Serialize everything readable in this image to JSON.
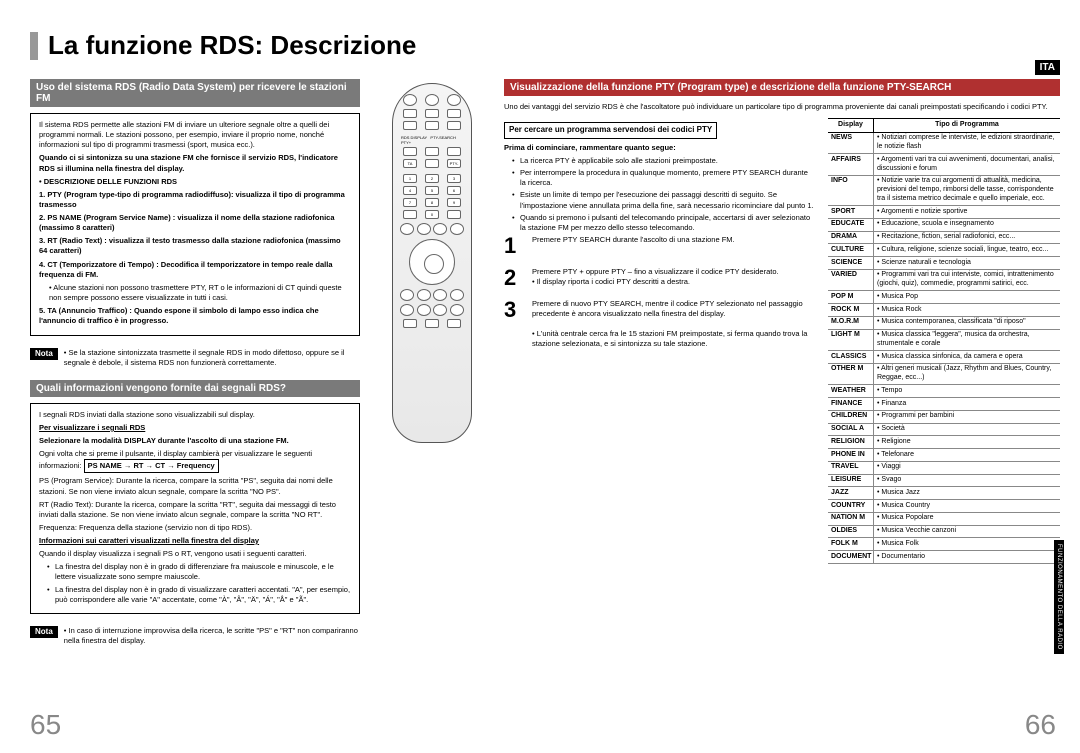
{
  "lang_badge": "ITA",
  "side_tab": "FUNZIONAMENTO DELLA RADIO",
  "title": "La funzione RDS: Descrizione",
  "page_left": "65",
  "page_right": "66",
  "left": {
    "hdr1": "Uso del sistema RDS (Radio Data System) per ricevere le stazioni FM",
    "box1": {
      "intro": "Il sistema RDS permette alle stazioni FM di inviare un ulteriore segnale oltre a quelli dei programmi normali. Le stazioni possono, per esempio, inviare il proprio nome, nonché informazioni sul tipo di programmi trasmessi (sport, musica ecc.).",
      "bold1": "Quando ci si sintonizza su una stazione FM che fornisce il servizio RDS, l'indicatore RDS si illumina nella finestra del display.",
      "desc_hdr": "• DESCRIZIONE DELLE FUNZIONI RDS",
      "i1": "1. PTY (Program type-tipo di programma radiodiffuso): visualizza il tipo di programma trasmesso",
      "i2": "2. PS NAME (Program Service Name) : visualizza il nome della stazione radiofonica (massimo 8 caratteri)",
      "i3": "3. RT (Radio Text) : visualizza il testo trasmesso dalla stazione radiofonica (massimo 64 caratteri)",
      "i4": "4. CT (Temporizzatore di Tempo) : Decodifica il temporizzatore in tempo reale dalla frequenza di FM.",
      "i4b": "• Alcune stazioni non possono trasmettere PTY, RT o le informazioni di CT quindi queste non sempre possono essere visualizzate in tutti i casi.",
      "i5": "5. TA (Annuncio Traffico) : Quando espone il simbolo di lampo esso indica che l'annuncio di traffico è in progresso."
    },
    "nota1": "• Se la stazione sintonizzata trasmette il segnale RDS in modo difettoso, oppure se il segnale è debole, il sistema RDS non funzionerà correttamente.",
    "hdr2": "Quali informazioni vengono fornite dai segnali RDS?",
    "box2": {
      "l1": "I segnali RDS inviati dalla stazione sono visualizzabili sul display.",
      "b1": "Per visualizzare i segnali RDS",
      "b2": "Selezionare la modalità DISPLAY durante l'ascolto di una stazione FM.",
      "l2": "Ogni volta che si preme il pulsante, il display cambierà per visualizzare le seguenti informazioni:",
      "seq": "PS NAME → RT → CT → Frequency",
      "ps": "PS (Program Service): Durante la ricerca, compare la scritta \"PS\", seguita dai nomi delle stazioni. Se non viene inviato alcun segnale, compare la scritta \"NO PS\".",
      "rt": "RT (Radio Text): Durante la ricerca, compare la scritta \"RT\", seguita dai messaggi di testo inviati dalla stazione. Se non viene inviato alcun segnale, compare la scritta \"NO RT\".",
      "freq": "Frequenza: Frequenza della stazione (servizio non di tipo RDS).",
      "b3": "Informazioni sui caratteri visualizzati nella finestra del display",
      "l3": "Quando il display visualizza i segnali PS o RT, vengono usati i seguenti caratteri.",
      "li1": "La finestra del display non è in grado di differenziare fra maiuscole e minuscole, e le lettere visualizzate sono sempre maiuscole.",
      "li2": "La finestra del display non è in grado di visualizzare caratteri accentati. \"A\", per esempio, può corrispondere alle varie \"A\" accentate, come \"À\", \"Â\", \"Ä\", \"Á\", \"Å\" e \"Ã\"."
    },
    "nota2": "• In caso di interruzione improvvisa della ricerca, le scritte \"PS\" e \"RT\" non compariranno nella finestra del display."
  },
  "right": {
    "hdr": "Visualizzazione della funzione PTY (Program type) e descrizione della funzione PTY-SEARCH",
    "intro": "Uno dei vantaggi del servizio RDS è che l'ascoltatore può individuare un particolare tipo di programma proveniente dai canali preimpostati specificando i codici PTY.",
    "sub1": "Per cercare un programma servendosi dei codici PTY",
    "sub2": "Prima di cominciare, rammentare quanto segue:",
    "b1": "La ricerca PTY è applicabile solo alle stazioni preimpostate.",
    "b2": "Per interrompere la procedura in qualunque momento, premere PTY SEARCH durante la ricerca.",
    "b3": "Esiste un limite di tempo per l'esecuzione dei passaggi descritti di seguito. Se l'impostazione viene annullata prima della fine, sarà necessario ricominciare dal punto 1.",
    "b4": "Quando si premono i pulsanti del telecomando principale, accertarsi di aver selezionato la stazione FM per mezzo dello stesso telecomando.",
    "s1": "Premere PTY SEARCH durante l'ascolto di una stazione FM.",
    "s2": "Premere PTY + oppure PTY – fino a visualizzare il codice PTY desiderato.",
    "s2b": "• Il display riporta i codici PTY descritti a destra.",
    "s3": "Premere di nuovo PTY SEARCH, mentre il codice PTY selezionato nel passaggio precedente è ancora visualizzato nella finestra del display.",
    "s3b": "• L'unità centrale cerca fra le 15 stazioni FM preimpostate, si ferma quando trova la stazione selezionata, e si sintonizza su tale stazione."
  },
  "table": {
    "h1": "Display",
    "h2": "Tipo di Programma",
    "rows": [
      [
        "NEWS",
        "• Notiziari comprese le interviste, le edizioni straordinarie, le notizie flash"
      ],
      [
        "AFFAIRS",
        "• Argomenti vari tra cui avvenimenti, documentari, analisi, discussioni e forum"
      ],
      [
        "INFO",
        "• Notizie varie tra cui argomenti di attualità, medicina, previsioni del tempo, rimborsi delle tasse, corrispondente tra il sistema metrico decimale e quello imperiale, ecc."
      ],
      [
        "SPORT",
        "• Argomenti e notizie sportive"
      ],
      [
        "EDUCATE",
        "• Educazione, scuola e insegnamento"
      ],
      [
        "DRAMA",
        "• Recitazione, fiction, serial radiofonici, ecc..."
      ],
      [
        "CULTURE",
        "• Cultura, religione, scienze sociali, lingue, teatro, ecc..."
      ],
      [
        "SCIENCE",
        "• Scienze naturali e tecnologia"
      ],
      [
        "VARIED",
        "• Programmi vari tra cui interviste, comici, intrattenimento (giochi, quiz), commedie, programmi satirici, ecc."
      ],
      [
        "POP M",
        "• Musica Pop"
      ],
      [
        "ROCK M",
        "• Musica Rock"
      ],
      [
        "M.O.R.M",
        "• Musica contemporanea, classificata \"di riposo\""
      ],
      [
        "LIGHT M",
        "• Musica classica \"leggera\", musica da orchestra, strumentale e corale"
      ],
      [
        "CLASSICS",
        "• Musica classica sinfonica, da camera e opera"
      ],
      [
        "OTHER M",
        "• Altri generi musicali (Jazz, Rhythm and Blues, Country, Reggae, ecc...)"
      ],
      [
        "WEATHER",
        "• Tempo"
      ],
      [
        "FINANCE",
        "• Finanza"
      ],
      [
        "CHILDREN",
        "• Programmi per bambini"
      ],
      [
        "SOCIAL A",
        "• Società"
      ],
      [
        "RELIGION",
        "• Religione"
      ],
      [
        "PHONE IN",
        "• Telefonare"
      ],
      [
        "TRAVEL",
        "• Viaggi"
      ],
      [
        "LEISURE",
        "• Svago"
      ],
      [
        "JAZZ",
        "• Musica Jazz"
      ],
      [
        "COUNTRY",
        "• Musica Country"
      ],
      [
        "NATION M",
        "• Musica Popolare"
      ],
      [
        "OLDIES",
        "• Musica Vecchie canzoni"
      ],
      [
        "FOLK M",
        "• Musica Folk"
      ],
      [
        "DOCUMENT",
        "• Documentario"
      ]
    ]
  },
  "nota_label": "Nota"
}
